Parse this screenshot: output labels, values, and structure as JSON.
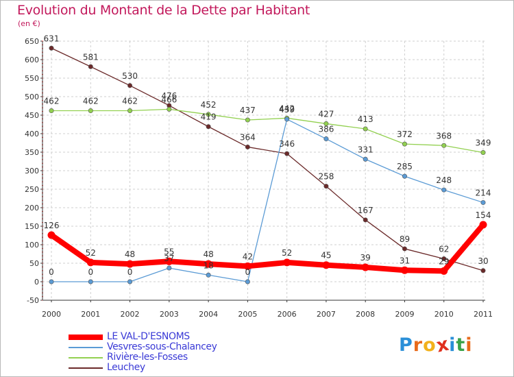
{
  "title": "Evolution du Montant de la Dette par Habitant",
  "unit": "(en €)",
  "brand": {
    "letters": [
      "P",
      "r",
      "o",
      "x",
      "i",
      "t",
      "i"
    ],
    "colors": [
      "#2a8fd8",
      "#e86a1a",
      "#f2b11c",
      "#e0301e",
      "#2a8fd8",
      "#3aa34a",
      "#e86a1a"
    ]
  },
  "chart_data": {
    "type": "line",
    "title": "Evolution du Montant de la Dette par Habitant",
    "ylabel": "(en €)",
    "x": [
      "2000",
      "2001",
      "2002",
      "2003",
      "2004",
      "2005",
      "2006",
      "2007",
      "2008",
      "2009",
      "2010",
      "2011"
    ],
    "ylim": [
      -50,
      650
    ],
    "yticks": [
      "-50",
      "0",
      "50",
      "100",
      "150",
      "200",
      "250",
      "300",
      "350",
      "400",
      "450",
      "500",
      "550",
      "600",
      "650"
    ],
    "grid": true,
    "legend_position": "bottom-left",
    "series": [
      {
        "name": "LE VAL-D'ESNOMS",
        "color": "#ff0000",
        "emphasis": true,
        "values": [
          126,
          52,
          48,
          55,
          48,
          42,
          52,
          45,
          39,
          31,
          29,
          154
        ],
        "labels": [
          "126",
          "52",
          "48",
          "55",
          "48",
          "42",
          "52",
          "45",
          "39",
          "31",
          "29",
          "154"
        ]
      },
      {
        "name": "Vesvres-sous-Chalancey",
        "color": "#5b9bd5",
        "values": [
          0,
          0,
          0,
          37,
          18,
          0,
          439,
          386,
          331,
          285,
          248,
          214
        ],
        "labels": [
          "0",
          "0",
          "0",
          "37",
          "18",
          "0",
          "439",
          "386",
          "331",
          "285",
          "248",
          "214"
        ]
      },
      {
        "name": "Rivière-les-Fosses",
        "color": "#92d050",
        "values": [
          462,
          462,
          462,
          466,
          452,
          437,
          442,
          427,
          413,
          372,
          368,
          349
        ],
        "labels": [
          "462",
          "462",
          "462",
          "466",
          "452",
          "437",
          "442",
          "427",
          "413",
          "372",
          "368",
          "349"
        ]
      },
      {
        "name": "Leuchey",
        "color": "#6b2a2a",
        "values": [
          631,
          581,
          530,
          476,
          419,
          364,
          346,
          258,
          167,
          89,
          62,
          30
        ],
        "labels": [
          "631",
          "581",
          "530",
          "476",
          "419",
          "364",
          "346",
          "258",
          "167",
          "89",
          "62",
          "30"
        ]
      }
    ]
  }
}
